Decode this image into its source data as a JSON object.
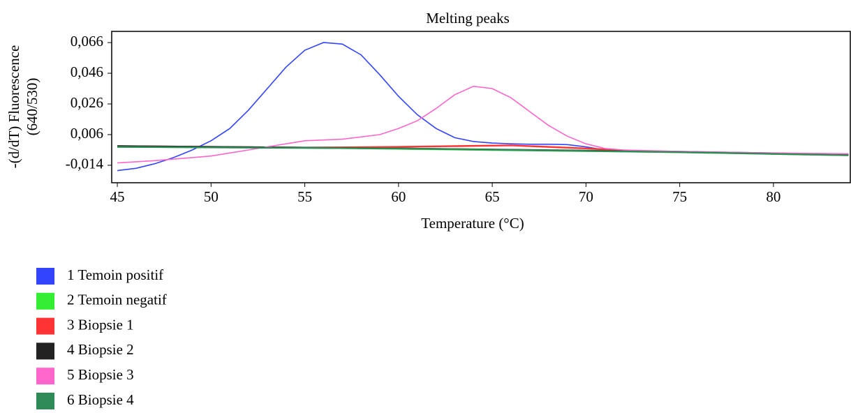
{
  "chart_data": {
    "type": "line",
    "title": "Melting peaks",
    "x_label": "Temperature (°C)",
    "y_label": [
      "-(d/dT) Fluorescence",
      "(640/530)"
    ],
    "xlim": [
      44.7,
      84.1
    ],
    "ylim": [
      -0.0254,
      0.0733
    ],
    "xticks": [
      45,
      50,
      55,
      60,
      65,
      70,
      75,
      80
    ],
    "yticks": [
      {
        "value": 0.066,
        "label": "0,066"
      },
      {
        "value": 0.046,
        "label": "0,046"
      },
      {
        "value": 0.026,
        "label": "0,026"
      },
      {
        "value": 0.006,
        "label": "0,006"
      },
      {
        "value": -0.014,
        "label": "-0,014"
      }
    ],
    "legend": "bottom-left",
    "series": [
      {
        "name": "1 Temoin positif",
        "color": "#3344ff",
        "x": [
          45,
          46,
          47,
          48,
          49,
          50,
          51,
          52,
          53,
          54,
          55,
          56,
          57,
          58,
          59,
          60,
          61,
          62,
          63,
          64,
          65,
          66,
          67,
          68,
          69,
          70,
          71,
          72,
          75,
          80,
          84
        ],
        "values": [
          -0.0175,
          -0.016,
          -0.013,
          -0.009,
          -0.004,
          0.002,
          0.01,
          0.022,
          0.036,
          0.05,
          0.061,
          0.066,
          0.065,
          0.058,
          0.045,
          0.031,
          0.019,
          0.01,
          0.004,
          0.0015,
          0.0005,
          0.0,
          -0.0003,
          -0.0003,
          -0.0005,
          -0.002,
          -0.004,
          -0.0045,
          -0.005,
          -0.006,
          -0.007
        ]
      },
      {
        "name": "2 Temoin negatif",
        "color": "#33ee33",
        "x": [
          45,
          55,
          65,
          75,
          84
        ],
        "values": [
          -0.002,
          -0.0025,
          -0.004,
          -0.0055,
          -0.0075
        ]
      },
      {
        "name": "3 Biopsie 1",
        "color": "#ff3333",
        "x": [
          45,
          55,
          60,
          63,
          66,
          70,
          73,
          84
        ],
        "values": [
          -0.0015,
          -0.0025,
          -0.002,
          -0.0015,
          -0.001,
          -0.003,
          -0.005,
          -0.007
        ]
      },
      {
        "name": "4 Biopsie 2",
        "color": "#222222",
        "x": [
          45,
          50,
          60,
          70,
          84
        ],
        "values": [
          -0.0015,
          -0.002,
          -0.003,
          -0.0045,
          -0.007
        ]
      },
      {
        "name": "5 Biopsie 3",
        "color": "#ff66cc",
        "x": [
          45,
          47,
          49,
          50,
          51,
          52,
          53,
          55,
          57,
          59,
          60,
          61,
          62,
          63,
          64,
          65,
          66,
          67,
          68,
          69,
          70,
          71,
          72,
          75,
          80,
          84
        ],
        "values": [
          -0.0125,
          -0.011,
          -0.009,
          -0.008,
          -0.006,
          -0.004,
          -0.002,
          0.002,
          0.003,
          0.006,
          0.01,
          0.015,
          0.023,
          0.032,
          0.0375,
          0.036,
          0.03,
          0.021,
          0.012,
          0.005,
          0.0,
          -0.003,
          -0.004,
          -0.005,
          -0.006,
          -0.0065
        ]
      },
      {
        "name": "6 Biopsie 4",
        "color": "#2e8b57",
        "x": [
          45,
          60,
          75,
          84
        ],
        "values": [
          -0.002,
          -0.003,
          -0.0055,
          -0.0075
        ]
      }
    ]
  }
}
